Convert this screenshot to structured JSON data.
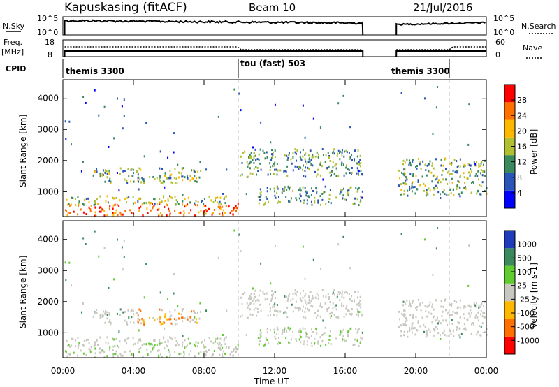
{
  "header": {
    "station": "Kapuskasing (fitACF)",
    "beam": "Beam 10",
    "date": "21/Jul/2016"
  },
  "top_panel": {
    "left_label_top": "N.Sky",
    "left_ticks": [
      "10^5",
      "10^0"
    ],
    "right_label": "N.Search",
    "right_ticks": [
      "10^5",
      "10^0"
    ]
  },
  "freq_panel": {
    "left_label_top": "Freq.",
    "left_label_unit": "[MHz]",
    "left_ticks": [
      "18",
      "8"
    ],
    "right_label": "Nave",
    "right_ticks": [
      "60",
      "0"
    ]
  },
  "cpid": {
    "label": "CPID",
    "segments": [
      {
        "name": "themis 3300",
        "start": 0,
        "end": 9.9
      },
      {
        "name": "tou (fast) 503",
        "start": 9.9,
        "end": 21.9
      },
      {
        "name": "themis 3300",
        "start": 21.9,
        "end": 24
      }
    ]
  },
  "time_axis": {
    "label": "Time UT",
    "ticks": [
      "00:00",
      "04:00",
      "08:00",
      "12:00",
      "16:00",
      "20:00",
      "00:00"
    ]
  },
  "colors": {
    "power_scale": [
      "#0000ff",
      "#2a55b8",
      "#3a8a5e",
      "#b0c030",
      "#ffb800",
      "#ff7000",
      "#ff0000"
    ],
    "velocity_scale": [
      "#ff0000",
      "#ff7000",
      "#ffb800",
      "#c8c8c0",
      "#60cc30",
      "#3a8a5e",
      "#1e3cbb"
    ]
  },
  "chart_data": [
    {
      "type": "heatmap",
      "name": "Power",
      "ylabel": "Slant Range [km]",
      "xlabel": "",
      "yticks": [
        "1000",
        "2000",
        "3000",
        "4000"
      ],
      "ylim": [
        200,
        4600
      ],
      "xlim": [
        0,
        24
      ],
      "colorbar_label": "Power [dB]",
      "colorbar_ticks": [
        "4",
        "8",
        "12",
        "16",
        "20",
        "24",
        "28"
      ],
      "colorbar_range": [
        0,
        30
      ],
      "data_gap": [
        17.0,
        18.9
      ],
      "features": [
        {
          "x": [
            0.1,
            10
          ],
          "range": [
            250,
            650
          ],
          "level": 26
        },
        {
          "x": [
            0.1,
            9.5
          ],
          "range": [
            600,
            900
          ],
          "level": 14
        },
        {
          "x": [
            1.5,
            7.8
          ],
          "range": [
            1300,
            1800
          ],
          "level": 12
        },
        {
          "x": [
            10,
            17
          ],
          "range": [
            1500,
            2400
          ],
          "level": 10
        },
        {
          "x": [
            11,
            17
          ],
          "range": [
            600,
            1200
          ],
          "level": 10
        },
        {
          "x": [
            19,
            24
          ],
          "range": [
            900,
            2100
          ],
          "level": 12
        }
      ]
    },
    {
      "type": "heatmap",
      "name": "Velocity",
      "ylabel": "Slant Range [km]",
      "xlabel": "Time UT",
      "yticks": [
        "1000",
        "2000",
        "3000",
        "4000"
      ],
      "ylim": [
        200,
        4600
      ],
      "xlim": [
        0,
        24
      ],
      "colorbar_label": "Velocity [m s-1]",
      "colorbar_ticks": [
        "-1000",
        "-500",
        "-100",
        "-25",
        "25",
        "100",
        "500",
        "1000"
      ],
      "data_gap": [
        17.0,
        18.9
      ]
    }
  ]
}
